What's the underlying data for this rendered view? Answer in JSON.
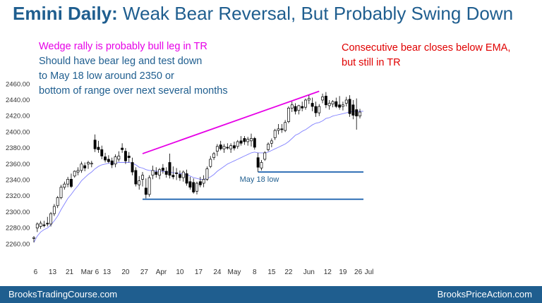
{
  "header": {
    "title_bold": "Emini Daily:",
    "title_rest": " Weak Bear Reversal, But Probably Swing Down"
  },
  "annotations": {
    "magenta_note": "Wedge rally is probably bull leg in TR",
    "blue_note": [
      "Should have bear leg and test down",
      "to May 18 low around 2350 or",
      "bottom of range over next several months"
    ],
    "red_note": [
      "Consecutive bear closes below EMA,",
      "but still in TR"
    ],
    "may18_label": "May 18 low"
  },
  "colors": {
    "brand": "#1f5e8f",
    "magenta": "#e600e6",
    "red": "#e00000",
    "ema": "#8080ff",
    "level_line": "#2f6fb5"
  },
  "footer": {
    "left": "BrooksTradingCourse.com",
    "right": "BrooksPriceAction.com"
  },
  "chart_data": {
    "type": "candlestick",
    "title": "",
    "ylim": [
      2255,
      2462
    ],
    "y_ticks": [
      "2260.00",
      "2280.00",
      "2300.00",
      "2320.00",
      "2340.00",
      "2360.00",
      "2380.00",
      "2400.00",
      "2420.00",
      "2440.00",
      "2460.00"
    ],
    "x_ticks": [
      "6",
      "13",
      "21",
      "Mar 6",
      "13",
      "20",
      "27",
      "Apr",
      "10",
      "17",
      "24",
      "May",
      "8",
      "15",
      "22",
      "Jun",
      "12",
      "19",
      "26",
      "Jul"
    ],
    "candles": [
      {
        "o": 2267,
        "h": 2270,
        "l": 2262,
        "c": 2268
      },
      {
        "o": 2280,
        "h": 2287,
        "l": 2275,
        "c": 2285
      },
      {
        "o": 2282,
        "h": 2289,
        "l": 2279,
        "c": 2286
      },
      {
        "o": 2284,
        "h": 2289,
        "l": 2281,
        "c": 2283
      },
      {
        "o": 2286,
        "h": 2294,
        "l": 2282,
        "c": 2285
      },
      {
        "o": 2285,
        "h": 2300,
        "l": 2282,
        "c": 2298
      },
      {
        "o": 2298,
        "h": 2310,
        "l": 2295,
        "c": 2307
      },
      {
        "o": 2308,
        "h": 2320,
        "l": 2305,
        "c": 2318
      },
      {
        "o": 2318,
        "h": 2334,
        "l": 2316,
        "c": 2331
      },
      {
        "o": 2331,
        "h": 2338,
        "l": 2328,
        "c": 2335
      },
      {
        "o": 2335,
        "h": 2344,
        "l": 2331,
        "c": 2341
      },
      {
        "o": 2341,
        "h": 2348,
        "l": 2330,
        "c": 2332
      },
      {
        "o": 2345,
        "h": 2352,
        "l": 2343,
        "c": 2351
      },
      {
        "o": 2350,
        "h": 2356,
        "l": 2346,
        "c": 2352
      },
      {
        "o": 2352,
        "h": 2363,
        "l": 2349,
        "c": 2360
      },
      {
        "o": 2358,
        "h": 2362,
        "l": 2351,
        "c": 2355
      },
      {
        "o": 2360,
        "h": 2364,
        "l": 2354,
        "c": 2362
      },
      {
        "o": 2360,
        "h": 2364,
        "l": 2356,
        "c": 2361
      },
      {
        "o": 2390,
        "h": 2397,
        "l": 2375,
        "c": 2379
      },
      {
        "o": 2381,
        "h": 2389,
        "l": 2374,
        "c": 2378
      },
      {
        "o": 2378,
        "h": 2383,
        "l": 2366,
        "c": 2370
      },
      {
        "o": 2369,
        "h": 2374,
        "l": 2362,
        "c": 2365
      },
      {
        "o": 2366,
        "h": 2371,
        "l": 2361,
        "c": 2363
      },
      {
        "o": 2364,
        "h": 2368,
        "l": 2355,
        "c": 2359
      },
      {
        "o": 2360,
        "h": 2372,
        "l": 2356,
        "c": 2369
      },
      {
        "o": 2366,
        "h": 2376,
        "l": 2363,
        "c": 2370
      },
      {
        "o": 2380,
        "h": 2386,
        "l": 2374,
        "c": 2378
      },
      {
        "o": 2376,
        "h": 2380,
        "l": 2360,
        "c": 2364
      },
      {
        "o": 2370,
        "h": 2375,
        "l": 2362,
        "c": 2368
      },
      {
        "o": 2362,
        "h": 2368,
        "l": 2346,
        "c": 2350
      },
      {
        "o": 2352,
        "h": 2356,
        "l": 2332,
        "c": 2335
      },
      {
        "o": 2334,
        "h": 2345,
        "l": 2328,
        "c": 2339
      },
      {
        "o": 2341,
        "h": 2350,
        "l": 2332,
        "c": 2346
      },
      {
        "o": 2330,
        "h": 2342,
        "l": 2317,
        "c": 2322
      },
      {
        "o": 2322,
        "h": 2346,
        "l": 2319,
        "c": 2343
      },
      {
        "o": 2346,
        "h": 2358,
        "l": 2341,
        "c": 2352
      },
      {
        "o": 2350,
        "h": 2356,
        "l": 2343,
        "c": 2347
      },
      {
        "o": 2346,
        "h": 2355,
        "l": 2341,
        "c": 2353
      },
      {
        "o": 2355,
        "h": 2360,
        "l": 2348,
        "c": 2352
      },
      {
        "o": 2351,
        "h": 2356,
        "l": 2343,
        "c": 2347
      },
      {
        "o": 2362,
        "h": 2373,
        "l": 2342,
        "c": 2346
      },
      {
        "o": 2346,
        "h": 2357,
        "l": 2341,
        "c": 2344
      },
      {
        "o": 2349,
        "h": 2355,
        "l": 2340,
        "c": 2348
      },
      {
        "o": 2347,
        "h": 2352,
        "l": 2339,
        "c": 2343
      },
      {
        "o": 2343,
        "h": 2352,
        "l": 2338,
        "c": 2350
      },
      {
        "o": 2348,
        "h": 2353,
        "l": 2333,
        "c": 2336
      },
      {
        "o": 2338,
        "h": 2344,
        "l": 2328,
        "c": 2331
      },
      {
        "o": 2337,
        "h": 2342,
        "l": 2323,
        "c": 2325
      },
      {
        "o": 2326,
        "h": 2338,
        "l": 2322,
        "c": 2336
      },
      {
        "o": 2338,
        "h": 2344,
        "l": 2331,
        "c": 2334
      },
      {
        "o": 2336,
        "h": 2346,
        "l": 2331,
        "c": 2341
      },
      {
        "o": 2341,
        "h": 2357,
        "l": 2339,
        "c": 2354
      },
      {
        "o": 2357,
        "h": 2370,
        "l": 2355,
        "c": 2366
      },
      {
        "o": 2368,
        "h": 2375,
        "l": 2365,
        "c": 2373
      },
      {
        "o": 2376,
        "h": 2385,
        "l": 2370,
        "c": 2382
      },
      {
        "o": 2384,
        "h": 2389,
        "l": 2377,
        "c": 2379
      },
      {
        "o": 2379,
        "h": 2385,
        "l": 2374,
        "c": 2382
      },
      {
        "o": 2381,
        "h": 2386,
        "l": 2378,
        "c": 2380
      },
      {
        "o": 2379,
        "h": 2386,
        "l": 2374,
        "c": 2383
      },
      {
        "o": 2383,
        "h": 2388,
        "l": 2377,
        "c": 2380
      },
      {
        "o": 2382,
        "h": 2390,
        "l": 2379,
        "c": 2388
      },
      {
        "o": 2389,
        "h": 2395,
        "l": 2383,
        "c": 2386
      },
      {
        "o": 2392,
        "h": 2395,
        "l": 2384,
        "c": 2388
      },
      {
        "o": 2388,
        "h": 2394,
        "l": 2383,
        "c": 2391
      },
      {
        "o": 2389,
        "h": 2398,
        "l": 2382,
        "c": 2392
      },
      {
        "o": 2392,
        "h": 2394,
        "l": 2378,
        "c": 2381
      },
      {
        "o": 2368,
        "h": 2374,
        "l": 2350,
        "c": 2356
      },
      {
        "o": 2355,
        "h": 2365,
        "l": 2352,
        "c": 2362
      },
      {
        "o": 2366,
        "h": 2376,
        "l": 2364,
        "c": 2374
      },
      {
        "o": 2378,
        "h": 2387,
        "l": 2376,
        "c": 2385
      },
      {
        "o": 2386,
        "h": 2392,
        "l": 2381,
        "c": 2389
      },
      {
        "o": 2393,
        "h": 2404,
        "l": 2390,
        "c": 2402
      },
      {
        "o": 2402,
        "h": 2410,
        "l": 2397,
        "c": 2404
      },
      {
        "o": 2404,
        "h": 2410,
        "l": 2399,
        "c": 2403
      },
      {
        "o": 2402,
        "h": 2415,
        "l": 2400,
        "c": 2412
      },
      {
        "o": 2413,
        "h": 2432,
        "l": 2411,
        "c": 2430
      },
      {
        "o": 2430,
        "h": 2438,
        "l": 2425,
        "c": 2434
      },
      {
        "o": 2432,
        "h": 2436,
        "l": 2422,
        "c": 2426
      },
      {
        "o": 2427,
        "h": 2434,
        "l": 2422,
        "c": 2433
      },
      {
        "o": 2432,
        "h": 2438,
        "l": 2426,
        "c": 2430
      },
      {
        "o": 2431,
        "h": 2442,
        "l": 2428,
        "c": 2440
      },
      {
        "o": 2440,
        "h": 2446,
        "l": 2435,
        "c": 2442
      },
      {
        "o": 2436,
        "h": 2443,
        "l": 2426,
        "c": 2432
      },
      {
        "o": 2432,
        "h": 2438,
        "l": 2419,
        "c": 2424
      },
      {
        "o": 2424,
        "h": 2435,
        "l": 2420,
        "c": 2432
      },
      {
        "o": 2440,
        "h": 2448,
        "l": 2436,
        "c": 2444
      },
      {
        "o": 2445,
        "h": 2450,
        "l": 2430,
        "c": 2434
      },
      {
        "o": 2433,
        "h": 2440,
        "l": 2428,
        "c": 2436
      },
      {
        "o": 2435,
        "h": 2440,
        "l": 2431,
        "c": 2438
      },
      {
        "o": 2438,
        "h": 2443,
        "l": 2430,
        "c": 2432
      },
      {
        "o": 2434,
        "h": 2445,
        "l": 2428,
        "c": 2431
      },
      {
        "o": 2432,
        "h": 2438,
        "l": 2427,
        "c": 2434
      },
      {
        "o": 2436,
        "h": 2444,
        "l": 2432,
        "c": 2440
      },
      {
        "o": 2441,
        "h": 2446,
        "l": 2419,
        "c": 2423
      },
      {
        "o": 2434,
        "h": 2440,
        "l": 2416,
        "c": 2421
      },
      {
        "o": 2428,
        "h": 2442,
        "l": 2403,
        "c": 2420
      },
      {
        "o": 2420,
        "h": 2429,
        "l": 2417,
        "c": 2425
      }
    ],
    "ema": [
      2262,
      2270,
      2275,
      2278,
      2280,
      2284,
      2289,
      2295,
      2303,
      2310,
      2317,
      2322,
      2328,
      2333,
      2339,
      2343,
      2347,
      2350,
      2354,
      2357,
      2359,
      2360,
      2361,
      2361,
      2361,
      2362,
      2362,
      2362,
      2362,
      2361,
      2359,
      2356,
      2355,
      2353,
      2352,
      2352,
      2351,
      2351,
      2351,
      2350,
      2350,
      2349,
      2349,
      2348,
      2348,
      2347,
      2345,
      2343,
      2342,
      2341,
      2341,
      2342,
      2344,
      2347,
      2351,
      2354,
      2357,
      2360,
      2362,
      2364,
      2366,
      2368,
      2370,
      2372,
      2374,
      2375,
      2374,
      2374,
      2374,
      2375,
      2377,
      2379,
      2381,
      2383,
      2385,
      2388,
      2392,
      2396,
      2398,
      2401,
      2403,
      2406,
      2409,
      2411,
      2412,
      2414,
      2417,
      2418,
      2420,
      2421,
      2422,
      2423,
      2424,
      2425,
      2426,
      2426,
      2426,
      2426
    ],
    "wedge_line": {
      "from": {
        "i": 32,
        "v": 2373
      },
      "to": {
        "i": 84,
        "v": 2451
      }
    },
    "levels": [
      {
        "name": "May 18 low",
        "value": 2350,
        "from_i": 66
      },
      {
        "name": "range bottom",
        "value": 2316,
        "from_i": 32
      }
    ]
  }
}
